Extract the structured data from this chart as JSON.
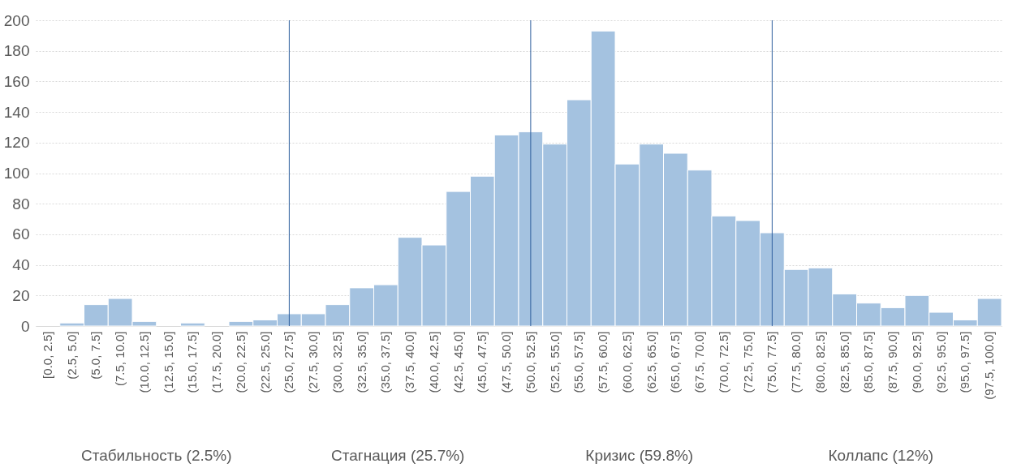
{
  "chart_data": {
    "type": "bar",
    "color": "#a4c2e0",
    "categories": [
      "[0.0, 2.5]",
      "(2.5, 5.0]",
      "(5.0, 7.5]",
      "(7.5, 10.0]",
      "(10.0, 12.5]",
      "(12.5, 15.0]",
      "(15.0, 17.5]",
      "(17.5, 20.0]",
      "(20.0, 22.5]",
      "(22.5, 25.0]",
      "(25.0, 27.5]",
      "(27.5, 30.0]",
      "(30.0, 32.5]",
      "(32.5, 35.0]",
      "(35.0, 37.5]",
      "(37.5, 40.0]",
      "(40.0, 42.5]",
      "(42.5, 45.0]",
      "(45.0, 47.5]",
      "(47.5, 50.0]",
      "(50.0, 52.5]",
      "(52.5, 55.0]",
      "(55.0, 57.5]",
      "(57.5, 60.0]",
      "(60.0, 62.5]",
      "(62.5, 65.0]",
      "(65.0, 67.5]",
      "(67.5, 70.0]",
      "(70.0, 72.5]",
      "(72.5, 75.0]",
      "(75.0, 77.5]",
      "(77.5, 80.0]",
      "(80.0, 82.5]",
      "(82.5, 85.0]",
      "(85.0, 87.5]",
      "(87.5, 90.0]",
      "(90.0, 92.5]",
      "(92.5, 95.0]",
      "(95.0, 97.5]",
      "(97.5, 100.0]"
    ],
    "values": [
      0,
      2,
      14,
      18,
      3,
      0,
      2,
      0,
      3,
      4,
      8,
      8,
      14,
      25,
      27,
      58,
      53,
      88,
      98,
      125,
      127,
      119,
      148,
      193,
      106,
      119,
      113,
      102,
      72,
      69,
      61,
      37,
      38,
      21,
      15,
      12,
      20,
      9,
      4,
      18
    ],
    "ylim": [
      0,
      200
    ],
    "yticks": [
      0,
      20,
      40,
      60,
      80,
      100,
      120,
      140,
      160,
      180,
      200
    ],
    "grid": "y",
    "ref_lines": [
      {
        "axis": "x",
        "value": "(25.0, 27.5]",
        "color": "#2e5f9e"
      },
      {
        "axis": "x",
        "value": "(50.0, 52.5]",
        "color": "#2e5f9e"
      },
      {
        "axis": "x",
        "value": "(75.0, 77.5]",
        "color": "#2e5f9e"
      }
    ],
    "annotations": [
      "Стабильность (2.5%)",
      "Стагнация (25.7%)",
      "Кризис (59.8%)",
      "Коллапс (12%)"
    ]
  }
}
